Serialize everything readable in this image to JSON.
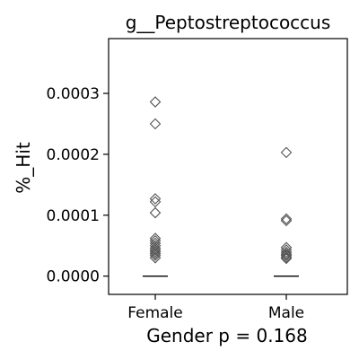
{
  "chart_data": {
    "type": "scatter",
    "title": "g__Peptostreptococcus",
    "ylabel": "%_Hit",
    "xlabel": "Gender p = 0.168",
    "ylim": [
      -3e-05,
      0.00039
    ],
    "yticks": [
      0,
      0.0001,
      0.0002,
      0.0003
    ],
    "ytick_labels": [
      "0.0000",
      "0.0001",
      "0.0002",
      "0.0003"
    ],
    "categories": [
      "Female",
      "Male"
    ],
    "grid": false,
    "series": [
      {
        "values": [
          [
            0.000286,
            0.00025,
            0.000127,
            0.000122,
            0.000104,
            6.2e-05,
            5.8e-05,
            5.4e-05,
            5e-05,
            4.6e-05,
            4.3e-05,
            4e-05,
            3.7e-05,
            3.4e-05,
            3e-05
          ],
          [
            0.000203,
            9.4e-05,
            9.1e-05,
            4.7e-05,
            4.3e-05,
            3.9e-05,
            3.6e-05,
            3.4e-05,
            3.1e-05,
            2.9e-05
          ]
        ],
        "medians": [
          0,
          0
        ],
        "marker": "diamond",
        "color": "#555555"
      }
    ]
  }
}
